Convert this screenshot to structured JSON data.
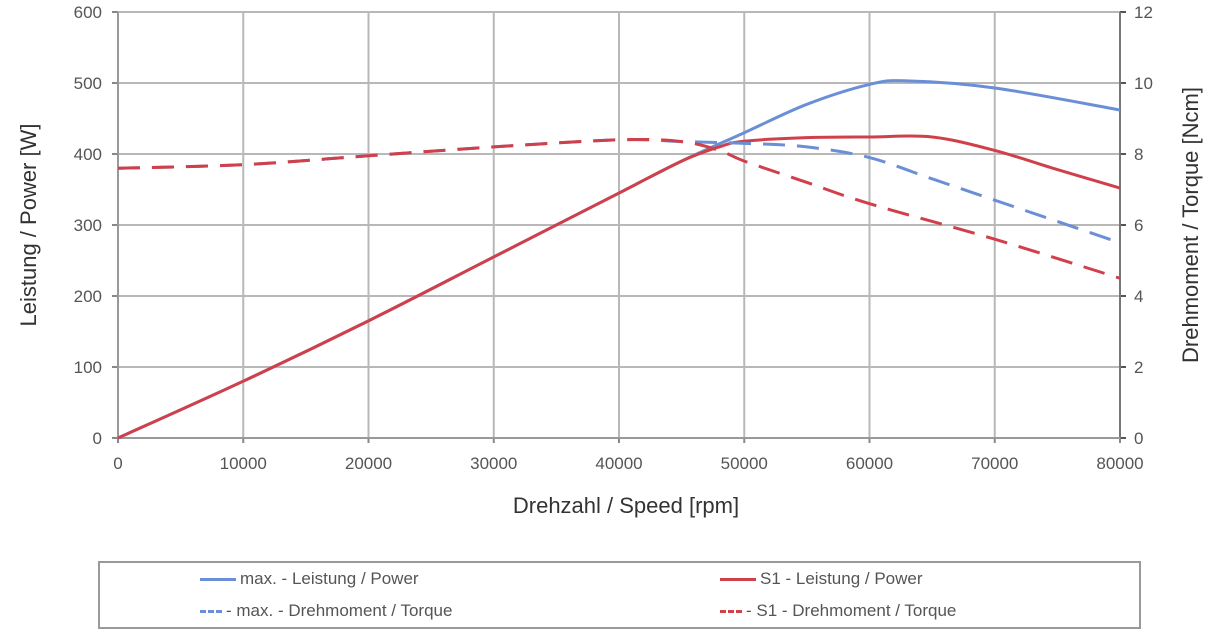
{
  "chart_data": {
    "type": "line",
    "title": "",
    "xlabel": "Drehzahl / Speed [rpm]",
    "ylabel": "Leistung / Power [W]",
    "y2label": "Drehmoment / Torque [Ncm]",
    "xlim": [
      0,
      80000
    ],
    "ylim": [
      0,
      600
    ],
    "y2lim": [
      0,
      12
    ],
    "grid": true,
    "legend_position": "bottom",
    "x_ticks": [
      "0",
      "10000",
      "20000",
      "30000",
      "40000",
      "50000",
      "60000",
      "70000",
      "80000"
    ],
    "y_ticks": [
      "0",
      "100",
      "200",
      "300",
      "400",
      "500",
      "600"
    ],
    "y2_ticks": [
      "0",
      "2",
      "4",
      "6",
      "8",
      "10",
      "12"
    ],
    "series": [
      {
        "name": "max. - Leistung / Power",
        "axis": "left",
        "style": "solid",
        "color": "#6b8fd6",
        "x": [
          0,
          10000,
          20000,
          30000,
          40000,
          45000,
          50000,
          55000,
          60000,
          63000,
          70000,
          80000
        ],
        "values": [
          0,
          80,
          165,
          255,
          345,
          390,
          430,
          470,
          498,
          503,
          493,
          462
        ]
      },
      {
        "name": "S1 - Leistung / Power",
        "axis": "left",
        "style": "solid",
        "color": "#d0404a",
        "x": [
          0,
          10000,
          20000,
          30000,
          40000,
          45000,
          48000,
          50000,
          55000,
          60000,
          65000,
          70000,
          75000,
          80000
        ],
        "values": [
          0,
          80,
          165,
          255,
          345,
          390,
          410,
          418,
          423,
          424,
          424,
          405,
          378,
          352
        ]
      },
      {
        "name": "max. - Drehmoment / Torque",
        "axis": "right",
        "style": "dashed",
        "color": "#6b8fd6",
        "x": [
          0,
          10000,
          20000,
          30000,
          40000,
          45000,
          50000,
          55000,
          60000,
          65000,
          70000,
          75000,
          80000
        ],
        "values": [
          7.6,
          7.7,
          7.95,
          8.2,
          8.4,
          8.35,
          8.3,
          8.2,
          7.9,
          7.3,
          6.7,
          6.1,
          5.5
        ]
      },
      {
        "name": "S1 - Drehmoment / Torque",
        "axis": "right",
        "style": "dashed",
        "color": "#d0404a",
        "x": [
          0,
          10000,
          20000,
          30000,
          40000,
          45000,
          48000,
          50000,
          55000,
          60000,
          70000,
          80000
        ],
        "values": [
          7.6,
          7.7,
          7.95,
          8.2,
          8.4,
          8.35,
          8.1,
          7.8,
          7.2,
          6.6,
          5.6,
          4.5
        ]
      }
    ]
  },
  "legend": {
    "items": [
      {
        "label": "max. - Leistung / Power",
        "color": "#6b8fd6",
        "style": "solid"
      },
      {
        "label": "S1 - Leistung / Power",
        "color": "#d0404a",
        "style": "solid"
      },
      {
        "label": "- max. - Drehmoment / Torque",
        "color": "#6b8fd6",
        "style": "dashed"
      },
      {
        "label": "- S1 - Drehmoment / Torque",
        "color": "#d0404a",
        "style": "dashed"
      }
    ]
  }
}
